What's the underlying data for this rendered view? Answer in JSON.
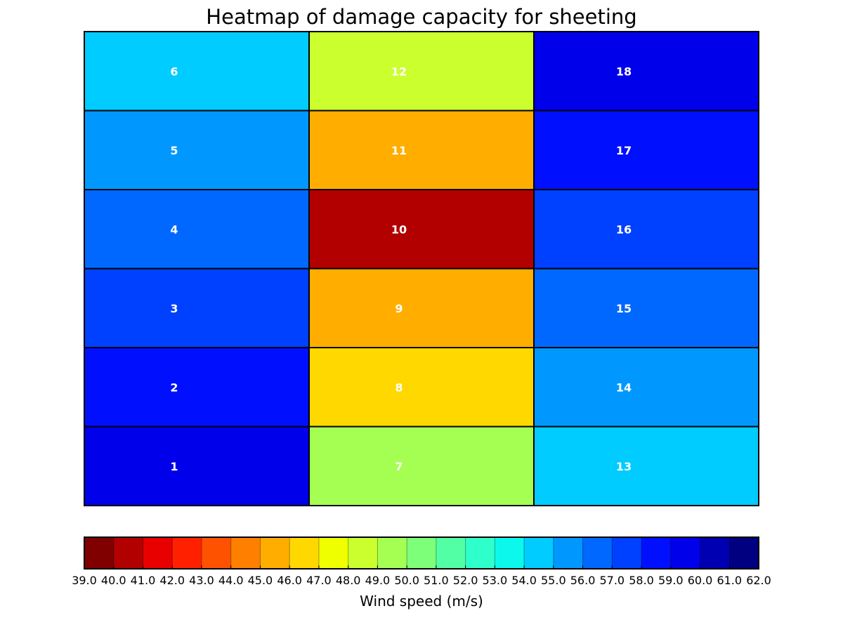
{
  "chart_data": {
    "type": "heatmap",
    "title": "Heatmap of damage capacity for sheeting",
    "cells": [
      {
        "label": "1",
        "col": 0,
        "row": 0,
        "value": 59.5
      },
      {
        "label": "2",
        "col": 0,
        "row": 1,
        "value": 58.5
      },
      {
        "label": "3",
        "col": 0,
        "row": 2,
        "value": 57.5
      },
      {
        "label": "4",
        "col": 0,
        "row": 3,
        "value": 56.5
      },
      {
        "label": "5",
        "col": 0,
        "row": 4,
        "value": 55.5
      },
      {
        "label": "6",
        "col": 0,
        "row": 5,
        "value": 54.5
      },
      {
        "label": "7",
        "col": 1,
        "row": 0,
        "value": 49.5
      },
      {
        "label": "8",
        "col": 1,
        "row": 1,
        "value": 46.5
      },
      {
        "label": "9",
        "col": 1,
        "row": 2,
        "value": 45.5
      },
      {
        "label": "10",
        "col": 1,
        "row": 3,
        "value": 40.5
      },
      {
        "label": "11",
        "col": 1,
        "row": 4,
        "value": 45.5
      },
      {
        "label": "12",
        "col": 1,
        "row": 5,
        "value": 48.5
      },
      {
        "label": "13",
        "col": 2,
        "row": 0,
        "value": 54.5
      },
      {
        "label": "14",
        "col": 2,
        "row": 1,
        "value": 55.5
      },
      {
        "label": "15",
        "col": 2,
        "row": 2,
        "value": 56.5
      },
      {
        "label": "16",
        "col": 2,
        "row": 3,
        "value": 57.5
      },
      {
        "label": "17",
        "col": 2,
        "row": 4,
        "value": 58.5
      },
      {
        "label": "18",
        "col": 2,
        "row": 5,
        "value": 59.5
      }
    ],
    "n_cols": 3,
    "n_rows": 6,
    "colorbar": {
      "label": "Wind speed (m/s)",
      "min": 39.0,
      "max": 62.0,
      "ticks": [
        "39.0",
        "40.0",
        "41.0",
        "42.0",
        "43.0",
        "44.0",
        "45.0",
        "46.0",
        "47.0",
        "48.0",
        "49.0",
        "50.0",
        "51.0",
        "52.0",
        "53.0",
        "54.0",
        "55.0",
        "56.0",
        "57.0",
        "58.0",
        "59.0",
        "60.0",
        "61.0",
        "62.0"
      ],
      "colors": [
        "#800000",
        "#b20000",
        "#e80000",
        "#ff2000",
        "#ff5200",
        "#ff8000",
        "#ffae00",
        "#ffd800",
        "#f0ff00",
        "#cbff2e",
        "#a5ff52",
        "#7dff7a",
        "#52ffa5",
        "#2effcb",
        "#0cf8ec",
        "#00ccff",
        "#0098ff",
        "#0068ff",
        "#0040ff",
        "#0010ff",
        "#0000ea",
        "#0000b2",
        "#000080"
      ]
    }
  }
}
